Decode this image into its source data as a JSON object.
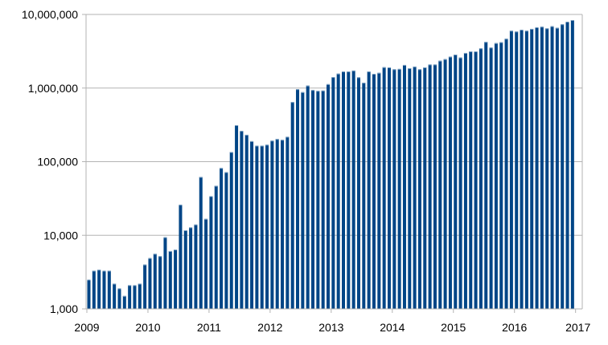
{
  "chart_data": {
    "type": "bar",
    "title": "",
    "xlabel": "",
    "ylabel": "",
    "y_scale": "log",
    "ylim": [
      1000,
      10000000
    ],
    "grid": true,
    "legend": "none",
    "bar_color": "#004586",
    "grid_color": "#b3b3b3",
    "y_ticks": [
      {
        "value": 1000,
        "label": "1,000"
      },
      {
        "value": 10000,
        "label": "10,000"
      },
      {
        "value": 100000,
        "label": "100,000"
      },
      {
        "value": 1000000,
        "label": "1,000,000"
      },
      {
        "value": 10000000,
        "label": "10,000,000"
      }
    ],
    "x_ticks": [
      "2009",
      "2010",
      "2011",
      "2012",
      "2013",
      "2014",
      "2015",
      "2016",
      "2017"
    ],
    "x_start": "2009-01",
    "frequency": "monthly",
    "values": [
      2500,
      3300,
      3400,
      3300,
      3300,
      2200,
      1900,
      1500,
      2100,
      2100,
      2200,
      4000,
      4900,
      5600,
      5200,
      9400,
      6100,
      6400,
      26000,
      11700,
      12800,
      14000,
      62000,
      16700,
      34000,
      47000,
      82000,
      72000,
      135000,
      313000,
      262000,
      232000,
      190000,
      165000,
      165000,
      170000,
      193000,
      203000,
      198000,
      218000,
      645000,
      965000,
      880000,
      1080000,
      940000,
      915000,
      925000,
      1130000,
      1410000,
      1570000,
      1680000,
      1680000,
      1730000,
      1400000,
      1180000,
      1680000,
      1560000,
      1610000,
      1920000,
      1910000,
      1800000,
      1820000,
      2060000,
      1860000,
      1960000,
      1800000,
      1910000,
      2090000,
      2090000,
      2350000,
      2470000,
      2670000,
      2850000,
      2600000,
      3000000,
      3150000,
      3150000,
      3460000,
      4230000,
      3550000,
      4080000,
      4190000,
      4680000,
      6010000,
      5860000,
      6210000,
      6010000,
      6370000,
      6700000,
      6810000,
      6470000,
      6920000,
      6580000,
      7350000,
      7980000,
      8390000
    ]
  }
}
